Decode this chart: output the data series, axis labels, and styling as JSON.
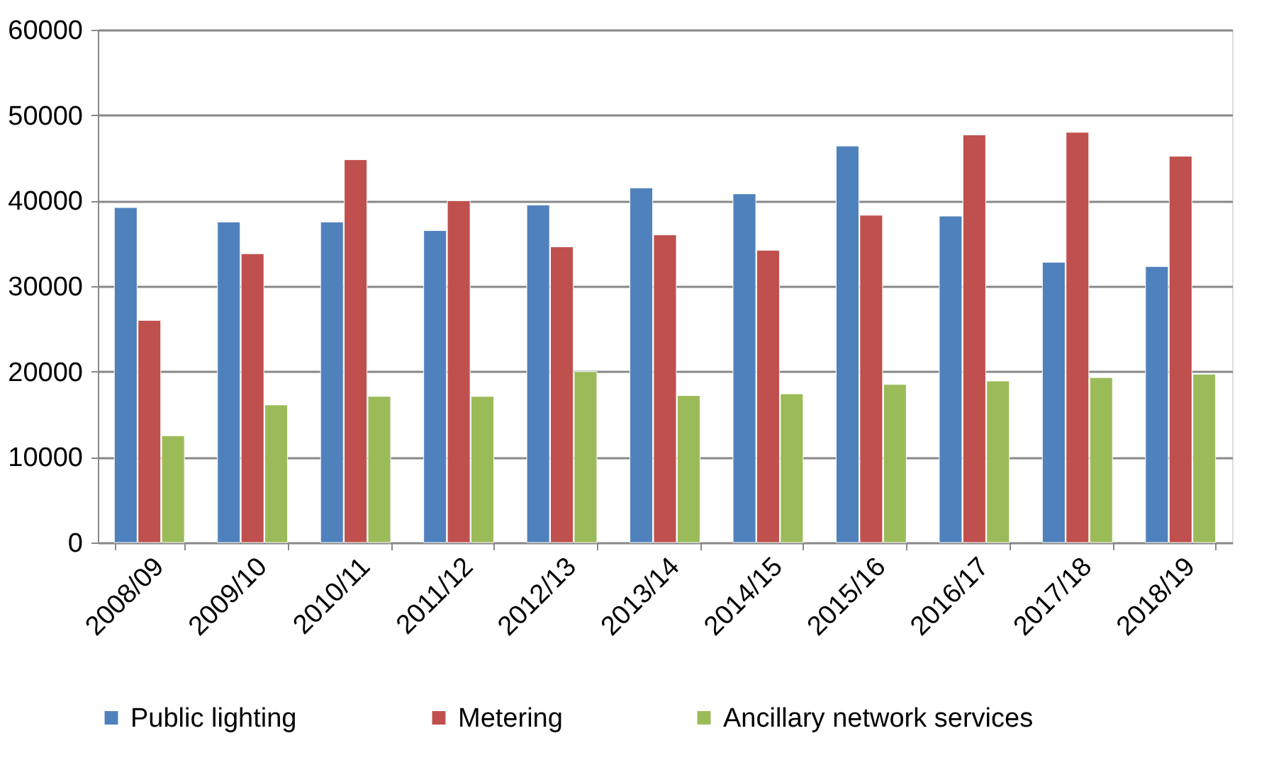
{
  "chart_data": {
    "type": "bar",
    "categories": [
      "2008/09",
      "2009/10",
      "2010/11",
      "2011/12",
      "2012/13",
      "2013/14",
      "2014/15",
      "2015/16",
      "2016/17",
      "2017/18",
      "2018/19"
    ],
    "series": [
      {
        "name": "Public lighting",
        "color": "#4f81bd",
        "values": [
          39200,
          37500,
          37500,
          36500,
          39500,
          41500,
          40800,
          46400,
          38200,
          32800,
          32300
        ]
      },
      {
        "name": "Metering",
        "color": "#c0504d",
        "values": [
          26000,
          33800,
          44800,
          40000,
          34600,
          36000,
          34200,
          38300,
          47700,
          48000,
          45200
        ]
      },
      {
        "name": "Ancillary network services",
        "color": "#9bbb59",
        "values": [
          12500,
          16100,
          17100,
          17100,
          20000,
          17200,
          17400,
          18500,
          18900,
          19300,
          19700
        ]
      }
    ],
    "ylim": [
      0,
      60000
    ],
    "yticks": [
      0,
      10000,
      20000,
      30000,
      40000,
      50000,
      60000
    ],
    "grid": "y",
    "legend": "bottom"
  }
}
